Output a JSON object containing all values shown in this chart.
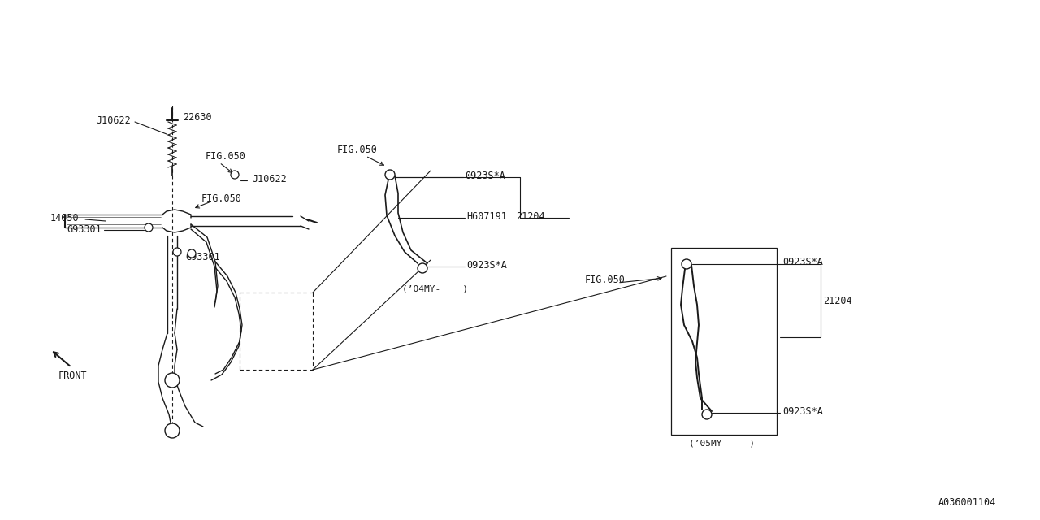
{
  "bg_color": "#ffffff",
  "line_color": "#1a1a1a",
  "text_color": "#1a1a1a",
  "fig_ref": "A036001104",
  "font_family": "monospace",
  "font_size": 8.5,
  "labels": {
    "J10622_top": "J10622",
    "22630": "22630",
    "FIG050_left": "FIG.050",
    "FIG050_top": "FIG.050",
    "J10622_mid": "J10622",
    "14050": "14050",
    "G93301_top": "G93301",
    "G93301_bot": "G93301",
    "FRONT": "FRONT",
    "0923SA_1": "0923S*A",
    "H607191": "H607191",
    "21204_1": "21204",
    "0923SA_2": "0923S*A",
    "04MY": "(’04MY-    )",
    "FIG050_right": "FIG.050",
    "0923SA_3": "0923S*A",
    "21204_2": "21204",
    "0923SA_4": "0923S*A",
    "05MY": "(’05MY-    )"
  }
}
